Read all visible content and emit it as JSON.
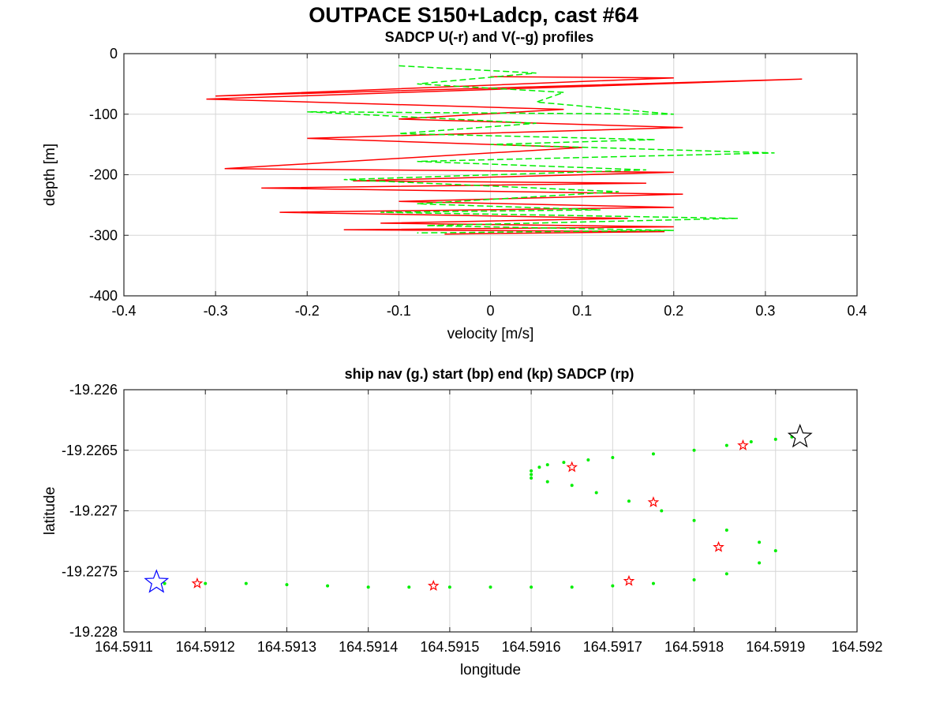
{
  "title": "OUTPACE S150+Ladcp, cast #64",
  "colors": {
    "u": "#ff0000",
    "v": "#00ee00",
    "nav": "#00ee00",
    "start": "#0000ff",
    "end": "#000000",
    "sadcp": "#ff0000"
  },
  "chart_data": [
    {
      "type": "line",
      "title": "SADCP U(-r) and V(--g) profiles",
      "xlabel": "velocity [m/s]",
      "ylabel": "depth [m]",
      "xlim": [
        -0.4,
        0.4
      ],
      "ylim": [
        -400,
        0
      ],
      "xticks": [
        -0.4,
        -0.3,
        -0.2,
        -0.1,
        0,
        0.1,
        0.2,
        0.3,
        0.4
      ],
      "xtick_labels": [
        "-0.4",
        "-0.3",
        "-0.2",
        "-0.1",
        "0",
        "0.1",
        "0.2",
        "0.3",
        "0.4"
      ],
      "yticks": [
        -400,
        -300,
        -200,
        -100,
        0
      ],
      "ytick_labels": [
        "-400",
        "-300",
        "-200",
        "-100",
        "0"
      ],
      "grid": true,
      "series": [
        {
          "id": "u",
          "style": "solid",
          "x": [
            0.0,
            0.2,
            -0.3,
            0.34,
            -0.31,
            0.08,
            -0.1,
            0.21,
            -0.2,
            0.1,
            -0.29,
            0.2,
            -0.15,
            0.17,
            -0.25,
            0.21,
            -0.1,
            0.2,
            -0.23,
            0.15,
            -0.12,
            0.2,
            -0.16,
            0.19,
            -0.05
          ],
          "y": [
            -38,
            -40,
            -70,
            -42,
            -75,
            -92,
            -108,
            -122,
            -140,
            -155,
            -190,
            -196,
            -210,
            -214,
            -222,
            -232,
            -244,
            -254,
            -262,
            -272,
            -280,
            -286,
            -291,
            -294,
            -298
          ]
        },
        {
          "id": "v",
          "style": "dashed",
          "x": [
            -0.1,
            0.05,
            -0.08,
            0.08,
            0.05,
            0.2,
            -0.2,
            0.05,
            -0.1,
            0.18,
            0.0,
            0.31,
            -0.08,
            0.17,
            -0.16,
            0.14,
            -0.08,
            0.12,
            -0.12,
            0.27,
            -0.07,
            0.2,
            -0.08
          ],
          "y": [
            -20,
            -32,
            -50,
            -64,
            -80,
            -100,
            -96,
            -115,
            -132,
            -142,
            -150,
            -164,
            -178,
            -192,
            -208,
            -228,
            -248,
            -258,
            -262,
            -272,
            -284,
            -292,
            -296
          ]
        }
      ]
    },
    {
      "type": "scatter",
      "title": "ship nav (g.) start (bp) end (kp) SADCP (rp)",
      "xlabel": "longitude",
      "ylabel": "latitude",
      "xlim": [
        164.5911,
        164.592
      ],
      "ylim": [
        -19.228,
        -19.226
      ],
      "xticks": [
        164.5911,
        164.5912,
        164.5913,
        164.5914,
        164.5915,
        164.5916,
        164.5917,
        164.5918,
        164.5919,
        164.592
      ],
      "xtick_labels": [
        "164.5911",
        "164.5912",
        "164.5913",
        "164.5914",
        "164.5915",
        "164.5916",
        "164.5917",
        "164.5918",
        "164.5919",
        "164.592"
      ],
      "yticks": [
        -19.228,
        -19.2275,
        -19.227,
        -19.2265,
        -19.226
      ],
      "ytick_labels": [
        "-19.228",
        "-19.2275",
        "-19.227",
        "-19.2265",
        "-19.226"
      ],
      "grid": true,
      "ship_nav": {
        "lon": [
          164.59192,
          164.5919,
          164.59187,
          164.59184,
          164.5918,
          164.59175,
          164.5917,
          164.59167,
          164.59164,
          164.59162,
          164.59161,
          164.5916,
          164.5916,
          164.5916,
          164.59162,
          164.59165,
          164.59168,
          164.59172,
          164.59176,
          164.5918,
          164.59184,
          164.59188,
          164.5919,
          164.59188,
          164.59184,
          164.5918,
          164.59175,
          164.5917,
          164.59165,
          164.5916,
          164.59155,
          164.5915,
          164.59145,
          164.5914,
          164.59135,
          164.5913,
          164.59125,
          164.5912,
          164.59115
        ],
        "lat": [
          -19.22639,
          -19.22641,
          -19.22643,
          -19.22646,
          -19.2265,
          -19.22653,
          -19.22656,
          -19.22658,
          -19.2266,
          -19.22662,
          -19.22664,
          -19.22667,
          -19.2267,
          -19.22673,
          -19.22676,
          -19.22679,
          -19.22685,
          -19.22692,
          -19.227,
          -19.22708,
          -19.22716,
          -19.22726,
          -19.22733,
          -19.22743,
          -19.22752,
          -19.22757,
          -19.2276,
          -19.22762,
          -19.22763,
          -19.22763,
          -19.22763,
          -19.22763,
          -19.22763,
          -19.22763,
          -19.22762,
          -19.22761,
          -19.2276,
          -19.2276,
          -19.2276
        ]
      },
      "start": {
        "lon": 164.59114,
        "lat": -19.22759
      },
      "end": {
        "lon": 164.59193,
        "lat": -19.22639
      },
      "sadcp_points": {
        "lon": [
          164.59119,
          164.59148,
          164.59172,
          164.59183,
          164.59175,
          164.59165,
          164.59186
        ],
        "lat": [
          -19.2276,
          -19.22762,
          -19.22758,
          -19.2273,
          -19.22693,
          -19.22664,
          -19.22646
        ]
      }
    }
  ]
}
